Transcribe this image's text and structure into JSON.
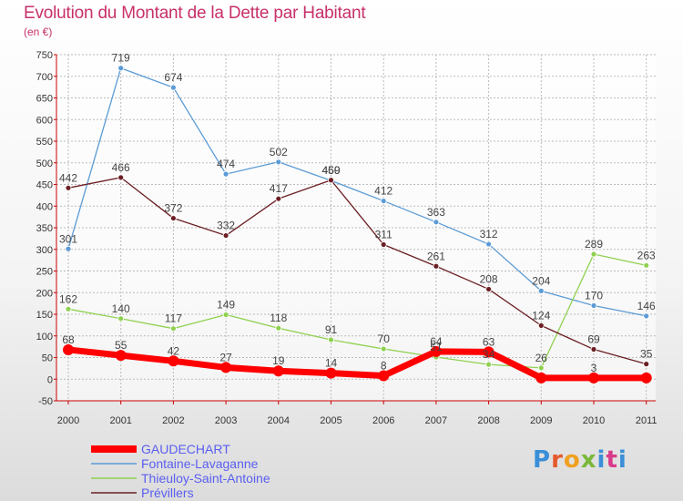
{
  "header": {
    "title": "Evolution du Montant de la Dette par Habitant",
    "subtitle": "(en €)"
  },
  "logo": {
    "text": "Proxiti",
    "colors": [
      "#3a8fd8",
      "#e55a2b",
      "#f0a020",
      "#7ab83a",
      "#3a8fd8",
      "#d93a8a",
      "#3a8fd8"
    ]
  },
  "chart_data": {
    "type": "line",
    "title": "Evolution du Montant de la Dette par Habitant",
    "subtitle": "(en €)",
    "xlabel": "",
    "ylabel": "",
    "categories": [
      "2000",
      "2001",
      "2002",
      "2003",
      "2004",
      "2005",
      "2006",
      "2007",
      "2008",
      "2009",
      "2010",
      "2011"
    ],
    "ylim": [
      -50,
      750
    ],
    "yticks": [
      -50,
      0,
      50,
      100,
      150,
      200,
      250,
      300,
      350,
      400,
      450,
      500,
      550,
      600,
      650,
      700,
      750
    ],
    "grid": true,
    "legend_position": "bottom-left",
    "series": [
      {
        "name": "GAUDECHART",
        "color": "#ff0000",
        "values": [
          68,
          55,
          42,
          27,
          19,
          14,
          8,
          64,
          63,
          3,
          3,
          3
        ],
        "labels": [
          "68",
          "55",
          "42",
          "27",
          "19",
          "14",
          "8",
          "64",
          "63",
          "",
          "3",
          ""
        ]
      },
      {
        "name": "Fontaine-Lavaganne",
        "color": "#5b9bd5",
        "values": [
          301,
          719,
          674,
          474,
          502,
          459,
          412,
          363,
          312,
          204,
          170,
          146
        ],
        "labels": [
          "301",
          "719",
          "674",
          "474",
          "502",
          "459",
          "412",
          "363",
          "312",
          "204",
          "170",
          "146"
        ]
      },
      {
        "name": "Thieuloy-Saint-Antoine",
        "color": "#8fd14f",
        "values": [
          162,
          140,
          117,
          149,
          118,
          91,
          70,
          51,
          34,
          26,
          289,
          263
        ],
        "labels": [
          "162",
          "140",
          "117",
          "149",
          "118",
          "91",
          "70",
          "51",
          "34",
          "26",
          "289",
          "263"
        ]
      },
      {
        "name": "Prévillers",
        "color": "#6b1f24",
        "values": [
          442,
          466,
          372,
          332,
          417,
          460,
          311,
          261,
          208,
          124,
          69,
          35
        ],
        "labels": [
          "442",
          "466",
          "372",
          "332",
          "417",
          "460",
          "311",
          "261",
          "208",
          "124",
          "69",
          "35"
        ]
      }
    ]
  }
}
